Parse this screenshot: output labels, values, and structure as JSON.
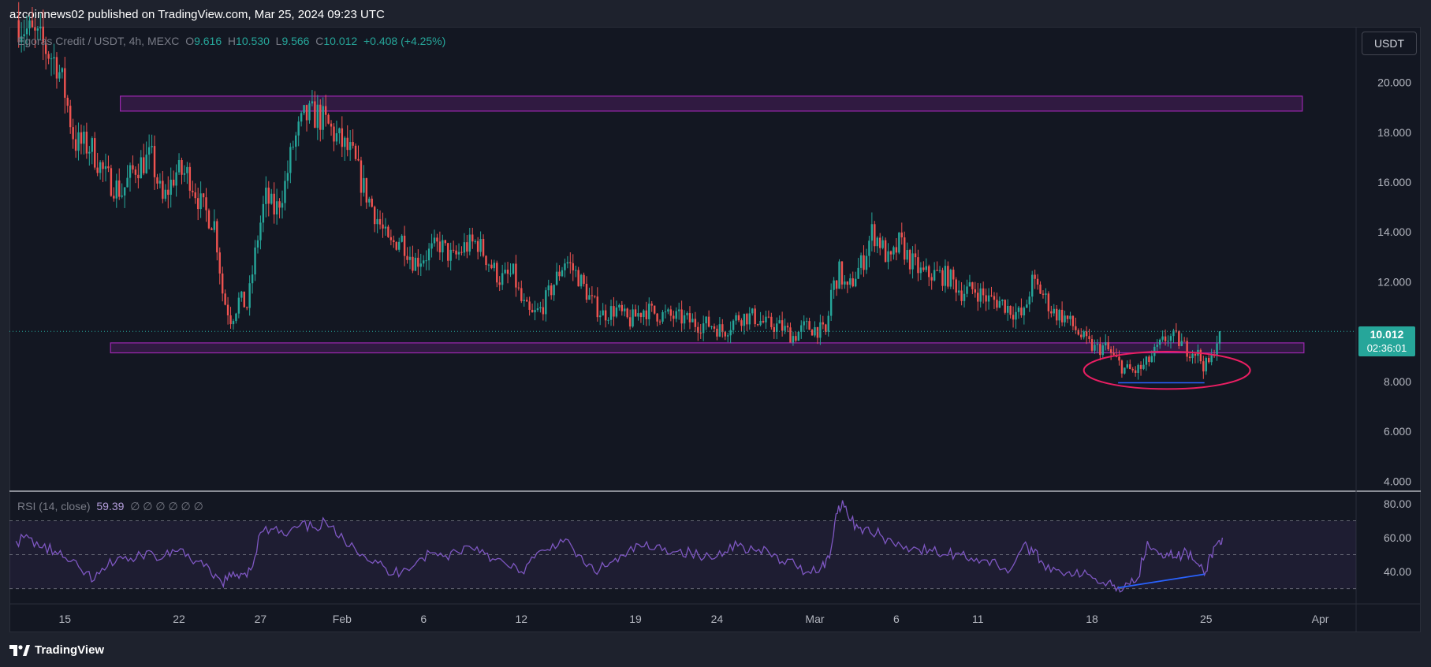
{
  "header": {
    "published": "azcoinnews02 published on TradingView.com, Mar 25, 2024 09:23 UTC"
  },
  "symbol": {
    "name": "Egoras Credit / USDT, 4h, MEXC",
    "o_label": "O",
    "o": "9.616",
    "h_label": "H",
    "h": "10.530",
    "l_label": "L",
    "l": "9.566",
    "c_label": "C",
    "c": "10.012",
    "change": "+0.408 (+4.25%)"
  },
  "currency_button": "USDT",
  "price_tag": {
    "price": "10.012",
    "countdown": "02:36:01"
  },
  "rsi": {
    "label": "RSI (14, close)",
    "value": "59.39",
    "extra": "∅ ∅ ∅ ∅ ∅ ∅"
  },
  "brand": "TradingView",
  "colors": {
    "background": "#131722",
    "up": "#26a69a",
    "down": "#ef5350",
    "zone": "#9c27b0",
    "rsi_line": "#7e57c2",
    "ellipse": "#e91e63",
    "trendline": "#2962ff"
  },
  "chart_data": [
    {
      "type": "candlestick",
      "price_axis": {
        "ticks": [
          4,
          6,
          8,
          10,
          12,
          14,
          16,
          18,
          20
        ],
        "tick_labels": [
          "4.000",
          "6.000",
          "8.000",
          "10.000",
          "12.000",
          "14.000",
          "16.000",
          "18.000",
          "20.000"
        ],
        "range": [
          3.6,
          22.2
        ]
      },
      "time_axis": {
        "tick_labels": [
          "15",
          "22",
          "27",
          "Feb",
          "6",
          "12",
          "19",
          "24",
          "Mar",
          "6",
          "11",
          "18",
          "25",
          "Apr"
        ],
        "tick_days": [
          15,
          22,
          27,
          32,
          37,
          43,
          50,
          55,
          61,
          66,
          71,
          78,
          85,
          92
        ],
        "range_days": [
          11.6,
          94.2
        ]
      },
      "last_price": 10.012,
      "series": [
        {
          "kind": "close_path_4h",
          "points": [
            [
              12.0,
              22.5
            ],
            [
              13.5,
              21.6
            ],
            [
              14.5,
              20.8
            ],
            [
              15.0,
              19.6
            ],
            [
              15.6,
              17.6
            ],
            [
              16.6,
              17.4
            ],
            [
              17.5,
              16.2
            ],
            [
              18.5,
              15.6
            ],
            [
              19.3,
              16.6
            ],
            [
              20.3,
              17.0
            ],
            [
              21.0,
              15.2
            ],
            [
              21.8,
              16.4
            ],
            [
              22.6,
              16.3
            ],
            [
              23.4,
              15.0
            ],
            [
              24.2,
              14.3
            ],
            [
              24.7,
              11.4
            ],
            [
              25.2,
              10.5
            ],
            [
              25.7,
              11.3
            ],
            [
              26.2,
              11.0
            ],
            [
              26.8,
              13.7
            ],
            [
              27.3,
              15.4
            ],
            [
              27.9,
              14.8
            ],
            [
              28.5,
              15.9
            ],
            [
              29.0,
              17.5
            ],
            [
              29.7,
              18.6
            ],
            [
              30.5,
              18.7
            ],
            [
              31.2,
              18.2
            ],
            [
              31.9,
              17.6
            ],
            [
              32.6,
              17.1
            ],
            [
              33.3,
              15.8
            ],
            [
              34.2,
              14.5
            ],
            [
              34.9,
              13.4
            ],
            [
              35.6,
              13.8
            ],
            [
              36.4,
              12.8
            ],
            [
              37.2,
              13.1
            ],
            [
              38.0,
              13.5
            ],
            [
              38.8,
              12.9
            ],
            [
              39.5,
              13.4
            ],
            [
              40.3,
              13.6
            ],
            [
              41.0,
              12.8
            ],
            [
              41.7,
              12.1
            ],
            [
              42.5,
              12.3
            ],
            [
              43.0,
              11.2
            ],
            [
              43.6,
              10.6
            ],
            [
              44.2,
              10.9
            ],
            [
              44.9,
              11.8
            ],
            [
              45.7,
              12.9
            ],
            [
              46.5,
              12.2
            ],
            [
              47.3,
              11.2
            ],
            [
              48.0,
              10.7
            ],
            [
              48.8,
              10.9
            ],
            [
              49.6,
              10.4
            ],
            [
              50.5,
              10.9
            ],
            [
              51.4,
              10.7
            ],
            [
              52.2,
              10.6
            ],
            [
              53.0,
              10.5
            ],
            [
              53.8,
              10.3
            ],
            [
              54.6,
              10.3
            ],
            [
              55.4,
              10.0
            ],
            [
              56.3,
              10.6
            ],
            [
              57.2,
              10.6
            ],
            [
              58.0,
              10.3
            ],
            [
              58.9,
              10.2
            ],
            [
              59.7,
              9.8
            ],
            [
              60.4,
              10.2
            ],
            [
              61.2,
              10.1
            ],
            [
              61.7,
              9.9
            ],
            [
              62.0,
              11.6
            ],
            [
              62.5,
              12.4
            ],
            [
              63.0,
              11.6
            ],
            [
              63.5,
              12.3
            ],
            [
              64.0,
              12.9
            ],
            [
              64.5,
              14.0
            ],
            [
              65.0,
              13.6
            ],
            [
              65.6,
              12.7
            ],
            [
              66.2,
              13.6
            ],
            [
              66.8,
              12.9
            ],
            [
              67.6,
              12.3
            ],
            [
              68.4,
              12.3
            ],
            [
              69.2,
              12.2
            ],
            [
              70.0,
              11.6
            ],
            [
              70.8,
              11.7
            ],
            [
              71.6,
              11.3
            ],
            [
              72.4,
              11.2
            ],
            [
              73.2,
              10.8
            ],
            [
              73.8,
              10.6
            ],
            [
              74.3,
              12.0
            ],
            [
              74.9,
              11.6
            ],
            [
              75.6,
              10.8
            ],
            [
              76.3,
              10.6
            ],
            [
              77.0,
              10.1
            ],
            [
              77.6,
              9.6
            ],
            [
              78.2,
              9.3
            ],
            [
              78.8,
              9.4
            ],
            [
              79.4,
              8.9
            ],
            [
              80.0,
              8.5
            ],
            [
              80.6,
              8.4
            ],
            [
              81.2,
              8.6
            ],
            [
              81.9,
              9.2
            ],
            [
              82.6,
              9.8
            ],
            [
              83.2,
              9.7
            ],
            [
              83.8,
              9.3
            ],
            [
              84.4,
              9.2
            ],
            [
              84.9,
              8.6
            ],
            [
              85.3,
              8.8
            ],
            [
              85.6,
              9.6
            ],
            [
              85.9,
              10.0
            ]
          ]
        }
      ],
      "zones": [
        {
          "from_day": 18.4,
          "to_day": 90.9,
          "low": 18.85,
          "high": 19.45
        },
        {
          "from_day": 17.8,
          "to_day": 91.0,
          "low": 9.15,
          "high": 9.55
        }
      ],
      "ellipse": {
        "center_day": 82.6,
        "center_price": 8.45,
        "half_width_days": 5.1,
        "half_height_price": 0.75
      },
      "trendline": {
        "from": [
          79.6,
          7.95
        ],
        "to": [
          84.9,
          7.95
        ]
      }
    },
    {
      "type": "line",
      "name": "RSI",
      "y_axis": {
        "ticks": [
          40,
          60,
          80
        ],
        "tick_labels": [
          "40.00",
          "60.00",
          "80.00"
        ],
        "range": [
          21,
          86
        ]
      },
      "levels": [
        70,
        50,
        30
      ],
      "x": [
        12.0,
        12.8,
        13.6,
        14.4,
        15.2,
        16.0,
        16.8,
        17.6,
        18.4,
        19.2,
        20.0,
        20.8,
        21.6,
        22.4,
        23.2,
        24.0,
        24.6,
        25.2,
        25.8,
        26.4,
        27.0,
        27.8,
        28.6,
        29.4,
        30.2,
        31.0,
        31.8,
        32.6,
        33.4,
        34.2,
        35.0,
        35.8,
        36.6,
        37.4,
        38.2,
        39.0,
        39.8,
        40.6,
        41.4,
        42.2,
        43.0,
        43.8,
        44.6,
        45.4,
        46.2,
        47.0,
        47.8,
        48.6,
        49.4,
        50.2,
        51.0,
        51.8,
        52.6,
        53.4,
        54.2,
        55.0,
        55.8,
        56.6,
        57.4,
        58.2,
        59.0,
        59.8,
        60.6,
        61.4,
        61.9,
        62.3,
        62.7,
        63.2,
        63.8,
        64.4,
        65.0,
        65.8,
        66.6,
        67.4,
        68.2,
        69.0,
        69.8,
        70.6,
        71.4,
        72.2,
        73.0,
        73.8,
        74.4,
        75.0,
        75.8,
        76.6,
        77.4,
        78.2,
        79.0,
        79.6,
        80.2,
        80.8,
        81.4,
        82.0,
        82.6,
        83.2,
        83.8,
        84.4,
        84.9,
        85.3,
        85.7,
        86.0
      ],
      "values": [
        58,
        60,
        54,
        52,
        46,
        41,
        35,
        43,
        49,
        46,
        52,
        47,
        53,
        49,
        46,
        38,
        34,
        37,
        39,
        41,
        63,
        65,
        61,
        67,
        66,
        69,
        60,
        57,
        49,
        45,
        38,
        42,
        46,
        51,
        49,
        52,
        55,
        53,
        47,
        43,
        40,
        48,
        53,
        59,
        53,
        43,
        41,
        46,
        49,
        56,
        53,
        54,
        52,
        51,
        48,
        49,
        56,
        55,
        52,
        51,
        46,
        44,
        40,
        43,
        48,
        74,
        82,
        70,
        66,
        63,
        62,
        57,
        55,
        53,
        52,
        50,
        51,
        48,
        47,
        44,
        41,
        56,
        51,
        45,
        41,
        40,
        38,
        36,
        34,
        31,
        33,
        36,
        58,
        52,
        51,
        48,
        52,
        45,
        38,
        50,
        57,
        60
      ]
    }
  ]
}
